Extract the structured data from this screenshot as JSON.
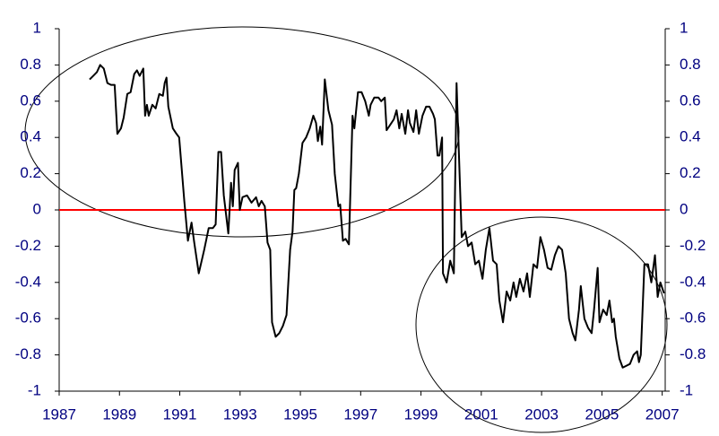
{
  "chart_data": {
    "type": "line",
    "x": [
      1988.01,
      1988.13,
      1988.25,
      1988.36,
      1988.48,
      1988.6,
      1988.72,
      1988.84,
      1988.93,
      1989.05,
      1989.14,
      1989.26,
      1989.37,
      1989.49,
      1989.58,
      1989.67,
      1989.79,
      1989.85,
      1989.91,
      1989.97,
      1990.09,
      1990.2,
      1990.32,
      1990.44,
      1990.5,
      1990.56,
      1990.62,
      1990.77,
      1990.89,
      1990.98,
      1991.15,
      1991.27,
      1991.39,
      1991.48,
      1991.63,
      1991.81,
      1991.96,
      1992.1,
      1992.19,
      1992.28,
      1992.37,
      1992.46,
      1992.61,
      1992.7,
      1992.76,
      1992.82,
      1992.93,
      1992.99,
      1993.08,
      1993.23,
      1993.38,
      1993.53,
      1993.62,
      1993.71,
      1993.82,
      1993.91,
      1994.0,
      1994.06,
      1994.18,
      1994.3,
      1994.42,
      1994.54,
      1994.66,
      1994.74,
      1994.8,
      1994.86,
      1994.95,
      1995.07,
      1995.19,
      1995.31,
      1995.43,
      1995.52,
      1995.58,
      1995.66,
      1995.72,
      1995.81,
      1995.93,
      1996.05,
      1996.14,
      1996.26,
      1996.32,
      1996.41,
      1996.5,
      1996.61,
      1996.73,
      1996.79,
      1996.91,
      1997.03,
      1997.15,
      1997.27,
      1997.33,
      1997.45,
      1997.59,
      1997.68,
      1997.8,
      1997.86,
      1997.98,
      1998.1,
      1998.19,
      1998.28,
      1998.36,
      1998.48,
      1998.57,
      1998.63,
      1998.75,
      1998.84,
      1998.93,
      1999.05,
      1999.17,
      1999.28,
      1999.4,
      1999.46,
      1999.55,
      1999.61,
      1999.7,
      1999.73,
      1999.85,
      1999.97,
      2000.09,
      2000.18,
      2000.26,
      2000.35,
      2000.47,
      2000.56,
      2000.68,
      2000.8,
      2000.92,
      2001.04,
      2001.15,
      2001.27,
      2001.39,
      2001.51,
      2001.6,
      2001.72,
      2001.84,
      2001.96,
      2002.07,
      2002.16,
      2002.28,
      2002.4,
      2002.52,
      2002.61,
      2002.73,
      2002.85,
      2002.96,
      2003.08,
      2003.2,
      2003.32,
      2003.44,
      2003.56,
      2003.68,
      2003.8,
      2003.91,
      2004.03,
      2004.12,
      2004.24,
      2004.3,
      2004.42,
      2004.54,
      2004.66,
      2004.74,
      2004.86,
      2004.92,
      2005.04,
      2005.16,
      2005.25,
      2005.34,
      2005.4,
      2005.46,
      2005.58,
      2005.69,
      2005.81,
      2005.93,
      2006.05,
      2006.17,
      2006.23,
      2006.29,
      2006.41,
      2006.53,
      2006.64,
      2006.76,
      2006.85,
      2006.94,
      2007.06
    ],
    "values": [
      0.72,
      0.74,
      0.76,
      0.8,
      0.78,
      0.7,
      0.69,
      0.69,
      0.42,
      0.45,
      0.51,
      0.64,
      0.65,
      0.75,
      0.77,
      0.74,
      0.78,
      0.52,
      0.58,
      0.52,
      0.58,
      0.56,
      0.64,
      0.63,
      0.7,
      0.73,
      0.57,
      0.45,
      0.42,
      0.4,
      0.05,
      -0.17,
      -0.07,
      -0.18,
      -0.35,
      -0.22,
      -0.1,
      -0.1,
      -0.08,
      0.32,
      0.32,
      0.08,
      -0.13,
      0.15,
      0.02,
      0.22,
      0.26,
      0.0,
      0.07,
      0.08,
      0.04,
      0.07,
      0.02,
      0.05,
      0.02,
      -0.18,
      -0.22,
      -0.62,
      -0.7,
      -0.68,
      -0.64,
      -0.58,
      -0.22,
      -0.12,
      0.11,
      0.12,
      0.2,
      0.37,
      0.4,
      0.45,
      0.52,
      0.48,
      0.38,
      0.46,
      0.36,
      0.72,
      0.55,
      0.47,
      0.2,
      0.02,
      0.03,
      -0.17,
      -0.16,
      -0.19,
      0.52,
      0.45,
      0.65,
      0.65,
      0.6,
      0.52,
      0.58,
      0.62,
      0.62,
      0.6,
      0.62,
      0.44,
      0.47,
      0.5,
      0.55,
      0.45,
      0.53,
      0.42,
      0.55,
      0.48,
      0.43,
      0.55,
      0.42,
      0.52,
      0.57,
      0.57,
      0.53,
      0.5,
      0.3,
      0.3,
      0.4,
      -0.35,
      -0.4,
      -0.28,
      -0.35,
      0.7,
      0.3,
      -0.15,
      -0.12,
      -0.2,
      -0.18,
      -0.3,
      -0.28,
      -0.38,
      -0.22,
      -0.1,
      -0.28,
      -0.3,
      -0.5,
      -0.62,
      -0.45,
      -0.5,
      -0.4,
      -0.48,
      -0.38,
      -0.45,
      -0.35,
      -0.48,
      -0.3,
      -0.32,
      -0.15,
      -0.22,
      -0.32,
      -0.33,
      -0.25,
      -0.2,
      -0.22,
      -0.35,
      -0.6,
      -0.68,
      -0.72,
      -0.55,
      -0.42,
      -0.6,
      -0.65,
      -0.68,
      -0.55,
      -0.32,
      -0.62,
      -0.55,
      -0.58,
      -0.5,
      -0.62,
      -0.6,
      -0.7,
      -0.82,
      -0.87,
      -0.86,
      -0.85,
      -0.8,
      -0.78,
      -0.84,
      -0.8,
      -0.3,
      -0.3,
      -0.4,
      -0.25,
      -0.48,
      -0.4,
      -0.46
    ],
    "color": "#000000",
    "xlim": [
      1987,
      2007.1
    ],
    "xticks": [
      1987,
      1989,
      1991,
      1993,
      1995,
      1997,
      1999,
      2001,
      2003,
      2005,
      2007
    ],
    "ylim": [
      -1,
      1
    ],
    "yticks": [
      -1,
      -0.8,
      -0.6,
      -0.4,
      -0.2,
      0,
      0.2,
      0.4,
      0.6,
      0.8,
      1
    ],
    "y2lim": [
      -1,
      1
    ],
    "y2ticks": [
      -1,
      -0.8,
      -0.6,
      -0.4,
      -0.2,
      0,
      0.2,
      0.4,
      0.6,
      0.8,
      1
    ],
    "zero_line": true,
    "zero_line_color": "#ff0000"
  }
}
